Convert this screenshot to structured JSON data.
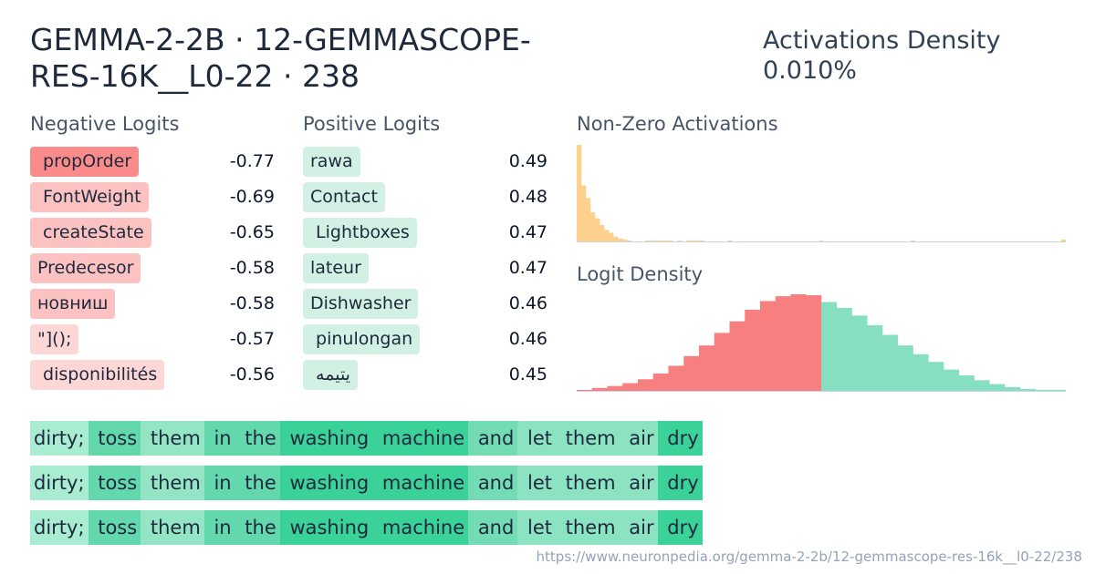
{
  "header": {
    "title": "GEMMA-2-2B · 12-GEMMASCOPE-RES-16K__L0-22 · 238",
    "density_label": "Activations Density",
    "density_value": "0.010%"
  },
  "negative_logits": {
    "label": "Negative Logits",
    "items": [
      {
        "token": " propOrder",
        "value": "-0.77",
        "color": "#f98b8b"
      },
      {
        "token": " FontWeight",
        "value": "-0.69",
        "color": "#fcc2c2"
      },
      {
        "token": " createState",
        "value": "-0.65",
        "color": "#fcc2c2"
      },
      {
        "token": "Predecesor",
        "value": "-0.58",
        "color": "#fcc2c2"
      },
      {
        "token": "новниш",
        "value": "-0.58",
        "color": "#fcc2c2"
      },
      {
        "token": "\"]();",
        "value": "-0.57",
        "color": "#fdd6d6"
      },
      {
        "token": " disponibilités",
        "value": "-0.56",
        "color": "#fdd6d6"
      }
    ]
  },
  "positive_logits": {
    "label": "Positive Logits",
    "items": [
      {
        "token": "rawa",
        "value": "0.49",
        "color": "#d2f1e4"
      },
      {
        "token": "Contact",
        "value": "0.48",
        "color": "#d2f1e4"
      },
      {
        "token": " Lightboxes",
        "value": "0.47",
        "color": "#d2f1e4"
      },
      {
        "token": "lateur",
        "value": "0.47",
        "color": "#d2f1e4"
      },
      {
        "token": "Dishwasher",
        "value": "0.46",
        "color": "#d2f1e4"
      },
      {
        "token": " pinulongan",
        "value": "0.46",
        "color": "#d2f1e4"
      },
      {
        "token": " يتيمه",
        "value": "0.45",
        "color": "#d2f1e4"
      }
    ]
  },
  "non_zero_activations": {
    "label": "Non-Zero Activations",
    "color": "#fdd08e",
    "bars": [
      100,
      58,
      45,
      30,
      24,
      17,
      12,
      9,
      5,
      3,
      2,
      1,
      0,
      0,
      0,
      1,
      1,
      1,
      1,
      1,
      1,
      0,
      1,
      0,
      1,
      1,
      1,
      1,
      0,
      0,
      0,
      0,
      0,
      1,
      0,
      0,
      0,
      0,
      0,
      0,
      0,
      0,
      0,
      0,
      0,
      0,
      0,
      0,
      0,
      0,
      0,
      0,
      0,
      1,
      0,
      0,
      0,
      0,
      0,
      0,
      0,
      0,
      0,
      0,
      0,
      0,
      0,
      0,
      0,
      0,
      0,
      0,
      0,
      1,
      0,
      0,
      0,
      0,
      0,
      0,
      0,
      0,
      0,
      0,
      0,
      0,
      0,
      0,
      0,
      0,
      0,
      0,
      0,
      0,
      0,
      0,
      0,
      0,
      0,
      0,
      0,
      0,
      0,
      0,
      0,
      0,
      2
    ]
  },
  "logit_density": {
    "label": "Logit Density",
    "neg_color": "#f87f7f",
    "pos_color": "#86dfc0",
    "bars": [
      {
        "v": 1,
        "s": "n"
      },
      {
        "v": 3,
        "s": "n"
      },
      {
        "v": 5,
        "s": "n"
      },
      {
        "v": 8,
        "s": "n"
      },
      {
        "v": 12,
        "s": "n"
      },
      {
        "v": 18,
        "s": "n"
      },
      {
        "v": 26,
        "s": "n"
      },
      {
        "v": 36,
        "s": "n"
      },
      {
        "v": 47,
        "s": "n"
      },
      {
        "v": 60,
        "s": "n"
      },
      {
        "v": 72,
        "s": "n"
      },
      {
        "v": 84,
        "s": "n"
      },
      {
        "v": 93,
        "s": "n"
      },
      {
        "v": 98,
        "s": "n"
      },
      {
        "v": 100,
        "s": "n"
      },
      {
        "v": 99,
        "s": "n"
      },
      {
        "v": 92,
        "s": "p"
      },
      {
        "v": 86,
        "s": "p"
      },
      {
        "v": 78,
        "s": "p"
      },
      {
        "v": 68,
        "s": "p"
      },
      {
        "v": 58,
        "s": "p"
      },
      {
        "v": 47,
        "s": "p"
      },
      {
        "v": 38,
        "s": "p"
      },
      {
        "v": 30,
        "s": "p"
      },
      {
        "v": 22,
        "s": "p"
      },
      {
        "v": 16,
        "s": "p"
      },
      {
        "v": 11,
        "s": "p"
      },
      {
        "v": 7,
        "s": "p"
      },
      {
        "v": 4,
        "s": "p"
      },
      {
        "v": 2,
        "s": "p"
      },
      {
        "v": 1,
        "s": "p"
      },
      {
        "v": 1,
        "s": "p"
      }
    ]
  },
  "snippets": [
    [
      {
        "t": "dirty;",
        "c": "#a8ecd1"
      },
      {
        "t": " toss",
        "c": "#62d8ac"
      },
      {
        "t": " them",
        "c": "#93e5c5"
      },
      {
        "t": " in",
        "c": "#62d8ac"
      },
      {
        "t": " the",
        "c": "#62d8ac"
      },
      {
        "t": " washing",
        "c": "#3bd29a"
      },
      {
        "t": " machine",
        "c": "#3bd29a"
      },
      {
        "t": " and",
        "c": "#74dcb5"
      },
      {
        "t": " let",
        "c": "#8be3c1"
      },
      {
        "t": " them",
        "c": "#8be3c1"
      },
      {
        "t": " air",
        "c": "#8be3c1"
      },
      {
        "t": " dry",
        "c": "#3bd29a"
      }
    ],
    [
      {
        "t": "dirty;",
        "c": "#a8ecd1"
      },
      {
        "t": " toss",
        "c": "#62d8ac"
      },
      {
        "t": " them",
        "c": "#93e5c5"
      },
      {
        "t": " in",
        "c": "#62d8ac"
      },
      {
        "t": " the",
        "c": "#62d8ac"
      },
      {
        "t": " washing",
        "c": "#3bd29a"
      },
      {
        "t": " machine",
        "c": "#3bd29a"
      },
      {
        "t": " and",
        "c": "#74dcb5"
      },
      {
        "t": " let",
        "c": "#8be3c1"
      },
      {
        "t": " them",
        "c": "#8be3c1"
      },
      {
        "t": " air",
        "c": "#8be3c1"
      },
      {
        "t": " dry",
        "c": "#3bd29a"
      }
    ],
    [
      {
        "t": "dirty;",
        "c": "#a8ecd1"
      },
      {
        "t": " toss",
        "c": "#62d8ac"
      },
      {
        "t": " them",
        "c": "#93e5c5"
      },
      {
        "t": " in",
        "c": "#62d8ac"
      },
      {
        "t": " the",
        "c": "#62d8ac"
      },
      {
        "t": " washing",
        "c": "#3bd29a"
      },
      {
        "t": " machine",
        "c": "#3bd29a"
      },
      {
        "t": " and",
        "c": "#74dcb5"
      },
      {
        "t": " let",
        "c": "#8be3c1"
      },
      {
        "t": " them",
        "c": "#8be3c1"
      },
      {
        "t": " air",
        "c": "#8be3c1"
      },
      {
        "t": " dry",
        "c": "#3bd29a"
      }
    ]
  ],
  "footer": {
    "url": "https://www.neuronpedia.org/gemma-2-2b/12-gemmascope-res-16k__l0-22/238"
  }
}
